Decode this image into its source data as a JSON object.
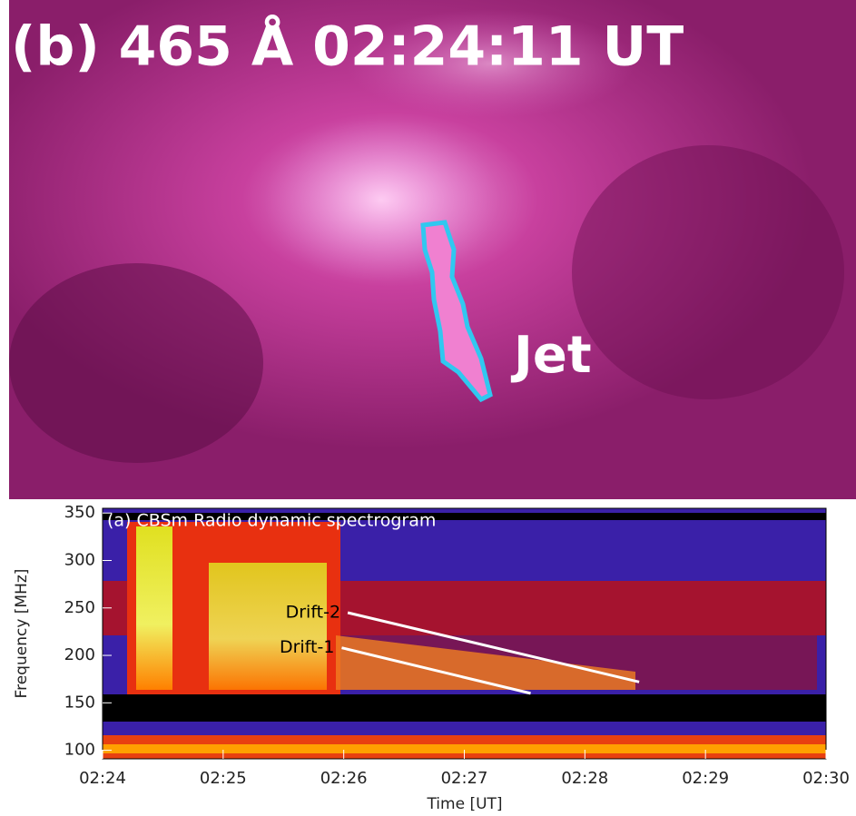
{
  "image_panel": {
    "title": "(b) 465 Å 02:24:11 UT",
    "label": "Jet"
  },
  "chart_data": {
    "type": "spectrogram",
    "title": "(a) CBSm Radio dynamic spectrogram",
    "x_label": "Time [UT]",
    "y_label": "Frequency [MHz]",
    "xlim": [
      "02:24",
      "02:30"
    ],
    "xticks": [
      "02:24",
      "02:25",
      "02:26",
      "02:27",
      "02:28",
      "02:29",
      "02:30"
    ],
    "ylim": [
      91,
      355
    ],
    "yticks": [
      100,
      150,
      200,
      250,
      300,
      350
    ],
    "annotations": [
      {
        "label": "Drift-2",
        "x": [
          "02:26:02",
          "02:28:27"
        ],
        "y": [
          245,
          172
        ]
      },
      {
        "label": "Drift-1",
        "x": [
          "02:25:59",
          "02:27:33"
        ],
        "y": [
          208,
          160
        ]
      }
    ]
  }
}
